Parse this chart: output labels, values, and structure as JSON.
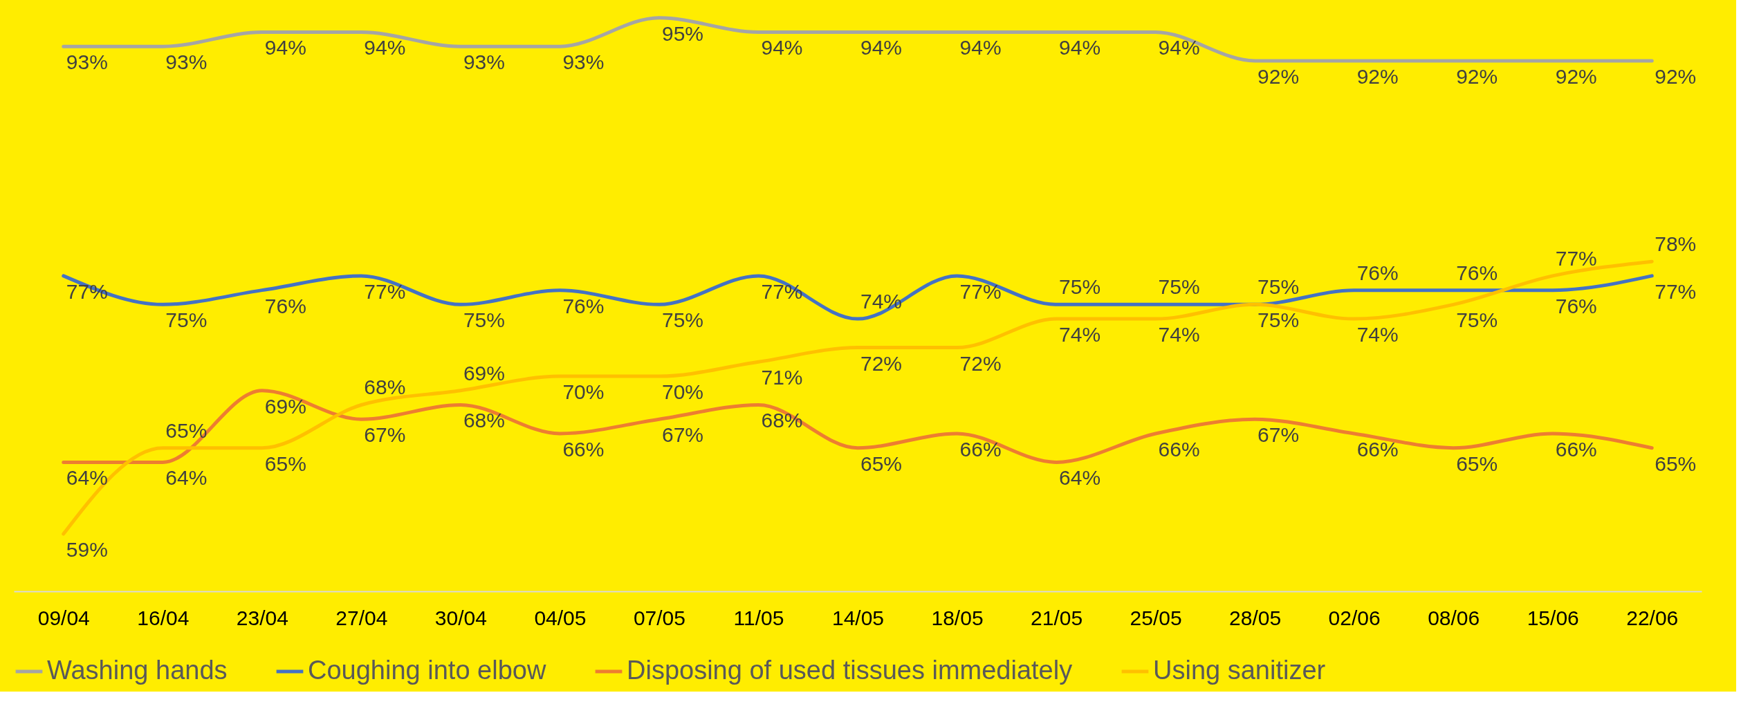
{
  "chart_data": {
    "type": "line",
    "categories": [
      "09/04",
      "16/04",
      "23/04",
      "27/04",
      "30/04",
      "04/05",
      "07/05",
      "11/05",
      "14/05",
      "18/05",
      "21/05",
      "25/05",
      "28/05",
      "02/06",
      "08/06",
      "15/06",
      "22/06"
    ],
    "ylim": [
      55,
      96
    ],
    "tick_labels": "x",
    "grid": false,
    "legend": "bottom",
    "marker": "none",
    "line_style": "solid",
    "series": [
      {
        "name": "Washing hands",
        "color": "#a5a5a5",
        "values": [
          93,
          93,
          94,
          94,
          93,
          93,
          95,
          94,
          94,
          94,
          94,
          94,
          92,
          92,
          92,
          92,
          92
        ],
        "value_labels": [
          "93%",
          "93%",
          "94%",
          "94%",
          "93%",
          "93%",
          "95%",
          "94%",
          "94%",
          "94%",
          "94%",
          "94%",
          "92%",
          "92%",
          "92%",
          "92%",
          "92%"
        ]
      },
      {
        "name": "Coughing into elbow",
        "color": "#4472c4",
        "values": [
          77,
          75,
          76,
          77,
          75,
          76,
          75,
          77,
          74,
          77,
          75,
          75,
          75,
          76,
          76,
          76,
          77
        ],
        "value_labels": [
          "77%",
          "75%",
          "76%",
          "77%",
          "75%",
          "76%",
          "75%",
          "77%",
          "74%",
          "77%",
          "75%",
          "75%",
          "75%",
          "76%",
          "76%",
          "76%",
          "77%"
        ]
      },
      {
        "name": "Disposing of used tissues immediately",
        "color": "#ed7d31",
        "values": [
          64,
          64,
          69,
          67,
          68,
          66,
          67,
          68,
          65,
          66,
          64,
          66,
          67,
          66,
          65,
          66,
          65
        ],
        "value_labels": [
          "64%",
          "64%",
          "69%",
          "67%",
          "68%",
          "66%",
          "67%",
          "68%",
          "65%",
          "66%",
          "64%",
          "66%",
          "67%",
          "66%",
          "65%",
          "66%",
          "65%"
        ]
      },
      {
        "name": "Using sanitizer",
        "color": "#ffc000",
        "values": [
          59,
          65,
          65,
          68,
          69,
          70,
          70,
          71,
          72,
          72,
          74,
          74,
          75,
          74,
          75,
          77,
          78
        ],
        "value_labels": [
          "59%",
          "65%",
          "65%",
          "68%",
          "69%",
          "70%",
          "70%",
          "71%",
          "72%",
          "72%",
          "74%",
          "74%",
          "75%",
          "74%",
          "75%",
          "77%",
          "78%"
        ]
      }
    ]
  }
}
